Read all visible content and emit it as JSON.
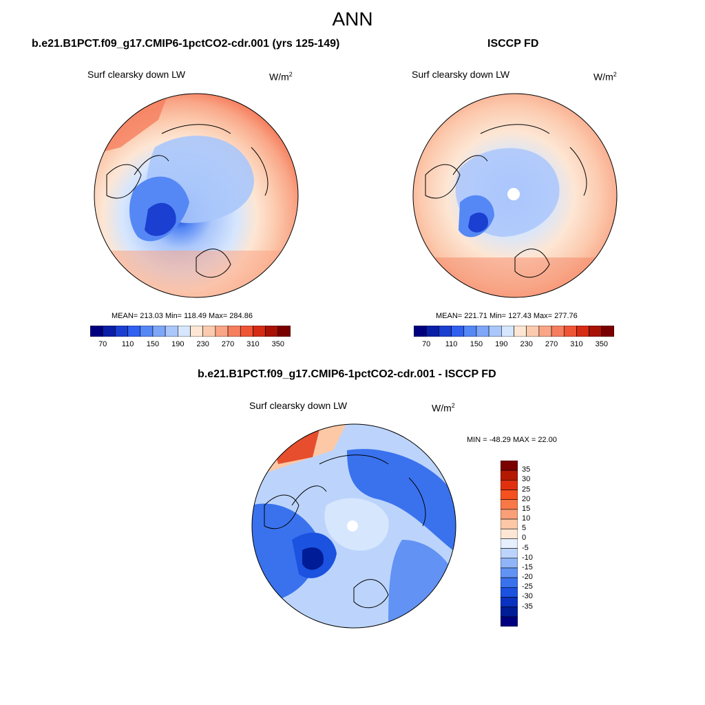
{
  "page": {
    "title": "ANN",
    "variable_label": "Surf clearsky down LW",
    "units": "W/m",
    "units_superscript": "2"
  },
  "panels": {
    "model": {
      "title": "b.e21.B1PCT.f09_g17.CMIP6-1pctCO2-cdr.001 (yrs 125-149)",
      "stats": "MEAN= 213.03  Min= 118.49  Max= 284.86"
    },
    "obs": {
      "title": "ISCCP FD",
      "stats": "MEAN= 221.71  Min= 127.43  Max= 277.76"
    },
    "diff": {
      "title": "b.e21.B1PCT.f09_g17.CMIP6-1pctCO2-cdr.001 - ISCCP FD",
      "stats": "MIN = -48.29 MAX =  22.00"
    }
  },
  "colorbar_abs": {
    "tick_labels": [
      "70",
      "110",
      "150",
      "190",
      "230",
      "270",
      "310",
      "350"
    ],
    "colors": [
      "#00007f",
      "#0a1fa8",
      "#1b3fd0",
      "#3060f0",
      "#5588f5",
      "#7ea6f8",
      "#aac6fb",
      "#d6e6fd",
      "#fde6d4",
      "#fccaae",
      "#f9a586",
      "#f57e5e",
      "#ee5535",
      "#d62b14",
      "#a81306",
      "#7a0000"
    ]
  },
  "colorbar_diff": {
    "tick_labels": [
      "35",
      "30",
      "25",
      "20",
      "15",
      "10",
      "5",
      "0",
      "-5",
      "-10",
      "-15",
      "-20",
      "-25",
      "-30",
      "-35"
    ],
    "colors": [
      "#7a0000",
      "#b51800",
      "#e03010",
      "#f55020",
      "#f87848",
      "#f9a078",
      "#fcc8a6",
      "#fde6d4",
      "#e6f0fc",
      "#bcd4fb",
      "#8fb4f8",
      "#6292f4",
      "#3a72ee",
      "#1c52e0",
      "#0a32c0",
      "#001c96",
      "#00007f"
    ]
  },
  "chart_data": {
    "type": "map",
    "projection": "north polar stereographic",
    "title": "ANN",
    "variable": "Surf clearsky down LW",
    "units": "W/m2",
    "panels": [
      {
        "name": "b.e21.B1PCT.f09_g17.CMIP6-1pctCO2-cdr.001 (yrs 125-149)",
        "mean": 213.03,
        "min": 118.49,
        "max": 284.86,
        "levels": [
          70,
          110,
          150,
          190,
          230,
          270,
          310,
          350
        ]
      },
      {
        "name": "ISCCP FD",
        "mean": 221.71,
        "min": 127.43,
        "max": 277.76,
        "levels": [
          70,
          110,
          150,
          190,
          230,
          270,
          310,
          350
        ]
      },
      {
        "name": "b.e21.B1PCT.f09_g17.CMIP6-1pctCO2-cdr.001 - ISCCP FD",
        "min": -48.29,
        "max": 22.0,
        "levels": [
          -35,
          -30,
          -25,
          -20,
          -15,
          -10,
          -5,
          0,
          5,
          10,
          15,
          20,
          25,
          30,
          35
        ]
      }
    ]
  }
}
